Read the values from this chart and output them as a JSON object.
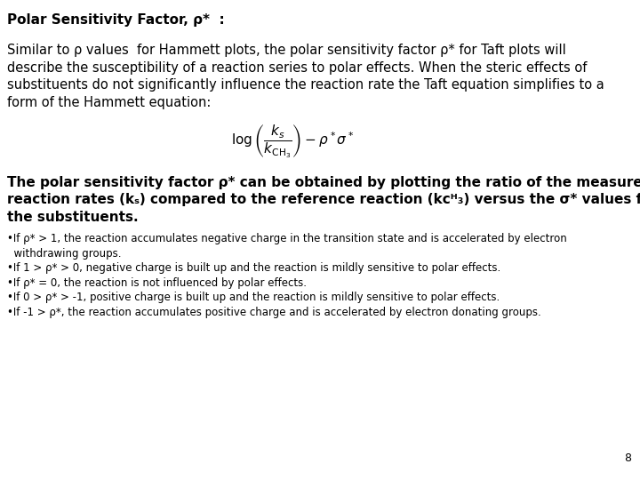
{
  "background_color": "#ffffff",
  "title": "Polar Sensitivity Factor, ρ*  :",
  "title_fontsize": 11,
  "body_fontsize": 10.5,
  "para2_fontsize": 11,
  "small_fontsize": 8.5,
  "eq_fontsize": 11,
  "paragraph1_lines": [
    "Similar to ρ values  for Hammett plots, the polar sensitivity factor ρ* for Taft plots will",
    "describe the susceptibility of a reaction series to polar effects. When the steric effects of",
    "substituents do not significantly influence the reaction rate the Taft equation simplifies to a",
    "form of the Hammett equation:"
  ],
  "paragraph2_lines": [
    "The polar sensitivity factor ρ* can be obtained by plotting the ratio of the measured",
    "reaction rates (kₛ) compared to the reference reaction (kᴄᴴ₃) versus the σ* values for",
    "the substituents."
  ],
  "bullets": [
    "•If ρ* > 1, the reaction accumulates negative charge in the transition state and is accelerated by electron",
    "  withdrawing groups.",
    "•If 1 > ρ* > 0, negative charge is built up and the reaction is mildly sensitive to polar effects.",
    "•If ρ* = 0, the reaction is not influenced by polar effects.",
    "•If 0 > ρ* > -1, positive charge is built up and the reaction is mildly sensitive to polar effects.",
    "•If -1 > ρ*, the reaction accumulates positive charge and is accelerated by electron donating groups."
  ],
  "page_number": "8",
  "fig_width": 7.2,
  "fig_height": 5.4,
  "dpi": 100
}
